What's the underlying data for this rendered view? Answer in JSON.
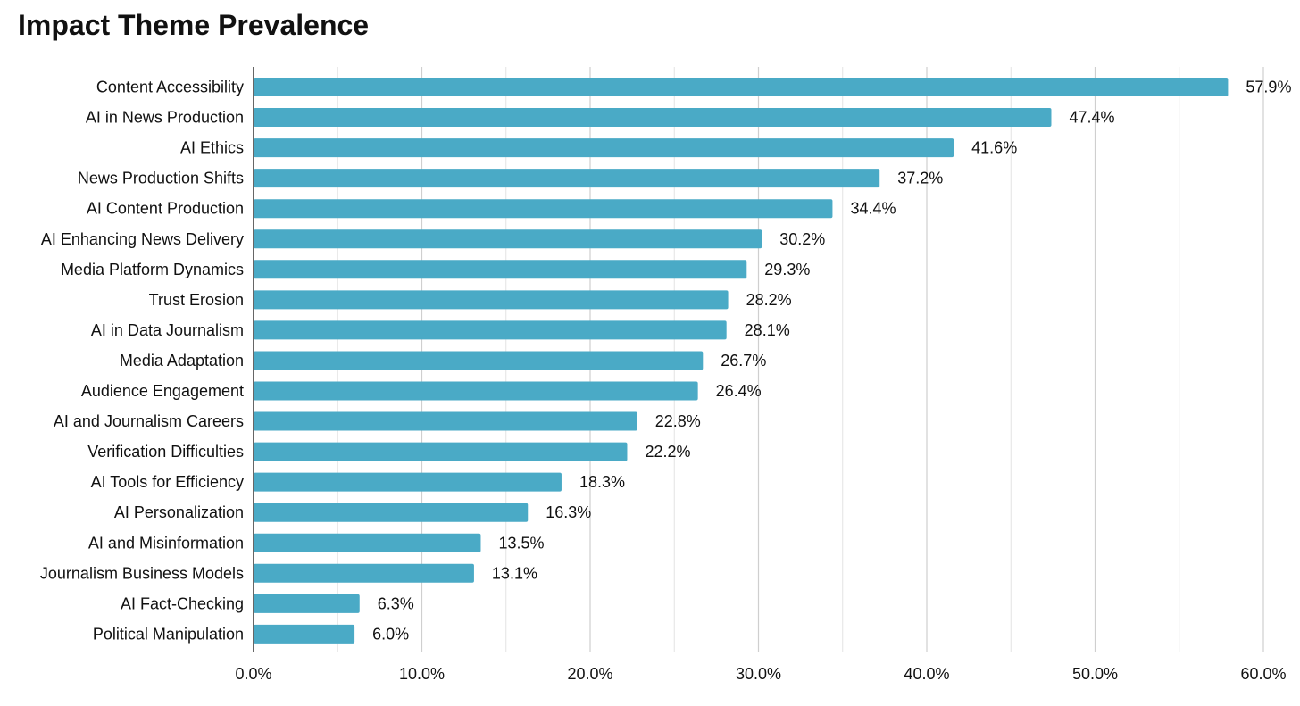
{
  "title": "Impact Theme Prevalence",
  "chart_data": {
    "type": "bar",
    "orientation": "horizontal",
    "title": "Impact Theme Prevalence",
    "xlabel": "",
    "ylabel": "",
    "xlim": [
      0,
      60
    ],
    "x_ticks": [
      0,
      10,
      20,
      30,
      40,
      50,
      60
    ],
    "x_tick_labels": [
      "0.0%",
      "10.0%",
      "20.0%",
      "30.0%",
      "40.0%",
      "50.0%",
      "60.0%"
    ],
    "grid": true,
    "bar_color": "#4aaac6",
    "categories": [
      "Content Accessibility",
      "AI in News Production",
      "AI Ethics",
      "News Production Shifts",
      "AI Content Production",
      "AI Enhancing News Delivery",
      "Media Platform Dynamics",
      "Trust Erosion",
      "AI in Data Journalism",
      "Media Adaptation",
      "Audience Engagement",
      "AI and Journalism Careers",
      "Verification Difficulties",
      "AI Tools for Efficiency",
      "AI Personalization",
      "AI and Misinformation",
      "Journalism Business Models",
      "AI Fact-Checking",
      "Political Manipulation"
    ],
    "values": [
      57.9,
      47.4,
      41.6,
      37.2,
      34.4,
      30.2,
      29.3,
      28.2,
      28.1,
      26.7,
      26.4,
      22.8,
      22.2,
      18.3,
      16.3,
      13.5,
      13.1,
      6.3,
      6.0
    ],
    "value_labels": [
      "57.9%",
      "47.4%",
      "41.6%",
      "37.2%",
      "34.4%",
      "30.2%",
      "29.3%",
      "28.2%",
      "28.1%",
      "26.7%",
      "26.4%",
      "22.8%",
      "22.2%",
      "18.3%",
      "16.3%",
      "13.5%",
      "13.1%",
      "6.3%",
      "6.0%"
    ]
  }
}
